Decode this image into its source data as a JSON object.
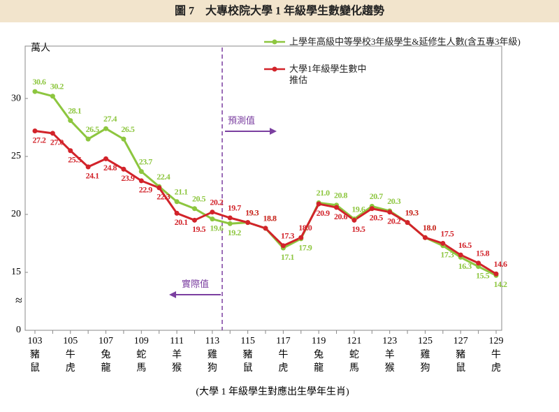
{
  "chart_data": {
    "type": "line",
    "title": "圖 7　大專校院大學 1 年級學生數變化趨勢",
    "y_label": "萬人",
    "x_label": "(大學 1 年級學生對應出生學年生肖)",
    "categories": [
      "103",
      null,
      "105",
      null,
      "107",
      null,
      "109",
      null,
      "111",
      null,
      "113",
      null,
      "115",
      null,
      "117",
      null,
      "119",
      null,
      "121",
      null,
      "123",
      null,
      "125",
      null,
      "127",
      null,
      "129"
    ],
    "zodiac": [
      [
        "豬",
        "鼠"
      ],
      null,
      [
        "牛",
        "虎"
      ],
      null,
      [
        "兔",
        "龍"
      ],
      null,
      [
        "蛇",
        "馬"
      ],
      null,
      [
        "羊",
        "猴"
      ],
      null,
      [
        "雞",
        "狗"
      ],
      null,
      [
        "豬",
        "鼠"
      ],
      null,
      [
        "牛",
        "虎"
      ],
      null,
      [
        "兔",
        "龍"
      ],
      null,
      [
        "蛇",
        "馬"
      ],
      null,
      [
        "羊",
        "猴"
      ],
      null,
      [
        "雞",
        "狗"
      ],
      null,
      [
        "豬",
        "鼠"
      ],
      null,
      [
        "牛",
        "虎"
      ]
    ],
    "series": [
      {
        "name": "上學年高級中等學校3年級學生&延修生人數(含五專3年級)",
        "color": "#8dc63f",
        "values": [
          30.6,
          30.2,
          28.1,
          26.5,
          27.4,
          26.5,
          23.7,
          22.4,
          21.1,
          20.5,
          19.6,
          19.2,
          19.3,
          18.8,
          17.1,
          17.9,
          21.0,
          20.8,
          19.6,
          20.7,
          20.3,
          19.3,
          18.0,
          17.3,
          16.3,
          15.5,
          14.2
        ],
        "value_labels": [
          "30.6",
          "30.2",
          "28.1",
          "26.5",
          "27.4",
          "26.5",
          "23.7",
          "22.4",
          "21.1",
          "20.5",
          "19.6",
          "19.2",
          "19.3",
          "18.8",
          "17.1",
          "17.9",
          "21.0",
          "20.8",
          "19.6",
          "20.7",
          "20.3",
          "19.3",
          "18.0",
          "17.3",
          "16.3",
          "15.5",
          "14.2"
        ]
      },
      {
        "name": "大學1年級學生數中推估",
        "color": "#d2232a",
        "values": [
          27.2,
          27.0,
          25.5,
          24.1,
          24.8,
          23.9,
          22.9,
          22.3,
          20.1,
          19.5,
          20.2,
          19.7,
          19.3,
          18.8,
          17.3,
          18.0,
          20.9,
          20.6,
          19.5,
          20.5,
          20.2,
          19.3,
          18.0,
          17.5,
          16.5,
          15.8,
          14.6
        ],
        "value_labels": [
          "27.2",
          "27.0",
          "25.5",
          "24.1",
          "24.8",
          "23.9",
          "22.9",
          "22.3",
          "20.1",
          "19.5",
          "20.2",
          "19.7",
          "19.3",
          "18.8",
          "17.3",
          "18.0",
          "20.9",
          "20.6",
          "19.5",
          "20.5",
          "20.2",
          "19.3",
          "18.0",
          "17.5",
          "16.5",
          "15.8",
          "14.6"
        ]
      }
    ],
    "ylim": [
      0,
      34.4
    ],
    "yticks": [
      0,
      15,
      20,
      25,
      30
    ],
    "y_axis_break": true,
    "annotations": [
      "預測值",
      "實際值"
    ]
  }
}
